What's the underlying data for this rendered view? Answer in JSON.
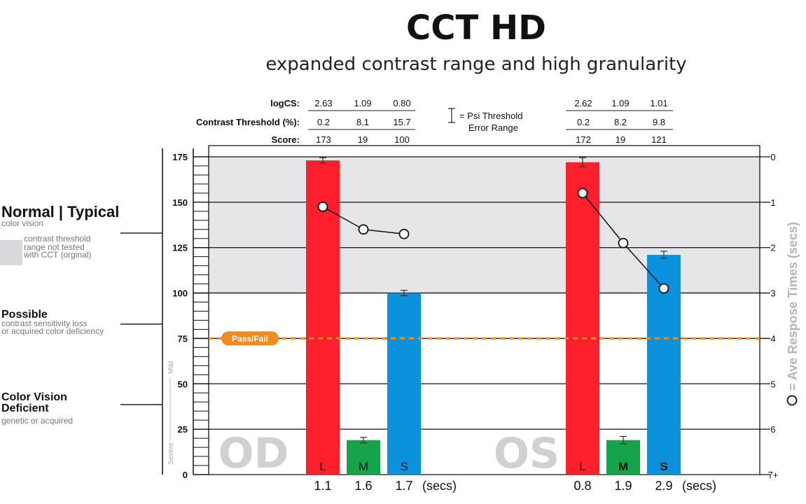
{
  "title": "CCT HD",
  "subtitle": "expanded contrast range and high granularity",
  "table": {
    "row_labels": [
      "logCS:",
      "Contrast Threshold (%):",
      "Score:"
    ],
    "od": [
      [
        "2.63",
        "1.09",
        "0.80"
      ],
      [
        "0.2",
        "8.1",
        "15.7"
      ],
      [
        "173",
        "19",
        "100"
      ]
    ],
    "os": [
      [
        "2.62",
        "1.09",
        "1.01"
      ],
      [
        "0.2",
        "8.2",
        "9.8"
      ],
      [
        "172",
        "19",
        "121"
      ]
    ],
    "legend_line1": "= Psi Threshold",
    "legend_line2": "Error Range"
  },
  "side": {
    "normal_title": "Normal | Typical",
    "normal_sub": "color vision",
    "gray_note_1": "contrast threshold",
    "gray_note_2": "range not tested",
    "gray_note_3": "with CCT (orginal)",
    "possible_title": "Possible",
    "possible_sub_1": "contrast sensitivity loss",
    "possible_sub_2": "or acquired color deficiency",
    "cvd_title_1": "Color Vision",
    "cvd_title_2": "Deficient",
    "cvd_sub": "genetic or acquired",
    "mild": "Mild",
    "severe": "Severe"
  },
  "pass_fail": "Pass/Fail",
  "right_axis_title": "= Ave Respose Times (secs)",
  "chart_data": {
    "type": "bar",
    "groups": [
      "OD",
      "OS"
    ],
    "categories": [
      "L",
      "M",
      "S"
    ],
    "bar_colors": [
      "#ff1f2d",
      "#14a54c",
      "#0a93dc"
    ],
    "series": [
      {
        "name": "OD",
        "values": [
          173,
          19,
          100
        ],
        "error": [
          1.5,
          1.5,
          1.5
        ],
        "response_times": [
          1.1,
          1.6,
          1.7
        ]
      },
      {
        "name": "OS",
        "values": [
          172,
          19,
          121
        ],
        "error": [
          2.5,
          2,
          2
        ],
        "response_times": [
          0.8,
          1.9,
          2.9
        ]
      }
    ],
    "ylim": [
      0,
      175
    ],
    "yticks": [
      0,
      25,
      50,
      75,
      100,
      125,
      150,
      175
    ],
    "right_ylim": [
      0,
      7
    ],
    "right_yticks": [
      "0",
      "1",
      "2",
      "3",
      "4",
      "5",
      "6",
      "7+"
    ],
    "response_time_labels": {
      "od": [
        "1.1",
        "1.6",
        "1.7"
      ],
      "os": [
        "0.8",
        "1.9",
        "2.9"
      ],
      "unit": "(secs)"
    },
    "pass_fail_threshold": 75,
    "shaded_range": [
      100,
      175
    ]
  }
}
